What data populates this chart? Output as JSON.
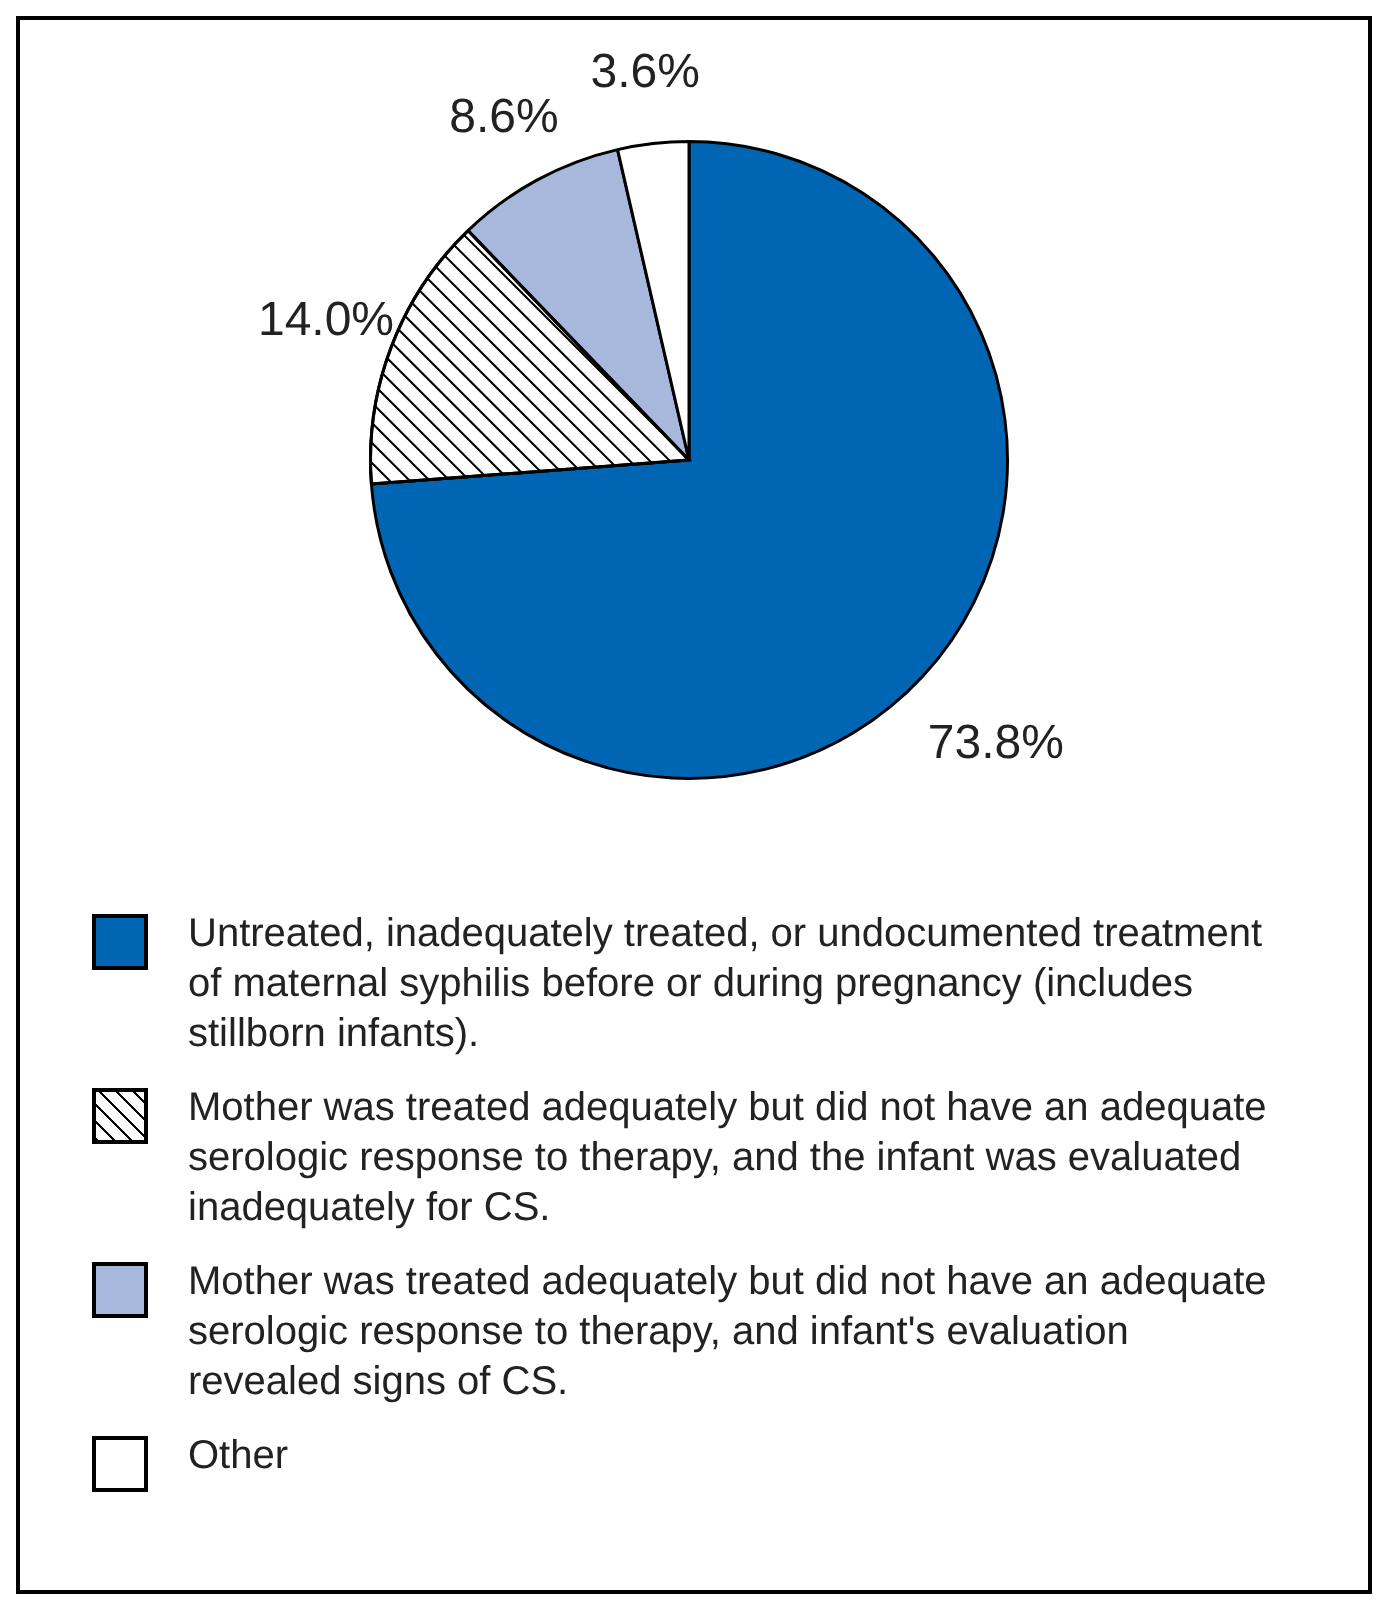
{
  "chart_data": {
    "type": "pie",
    "categories": [
      "Untreated, inadequately treated, or undocumented treatment of maternal syphilis before or during pregnancy (includes stillborn infants).",
      "Mother was treated adequately but did not have an adequate serologic response to therapy, and the infant was evaluated inadequately for CS.",
      "Mother was treated adequately but did not have an adequate serologic response to therapy, and infant's evaluation revealed signs of CS.",
      "Other"
    ],
    "values": [
      73.8,
      14.0,
      8.6,
      3.6
    ],
    "colors": [
      "#0066b3",
      "#ffffff",
      "#a8b8dc",
      "#ffffff"
    ],
    "value_labels": [
      "73.8%",
      "14.0%",
      "8.6%",
      "3.6%"
    ],
    "legend": "bottom"
  }
}
